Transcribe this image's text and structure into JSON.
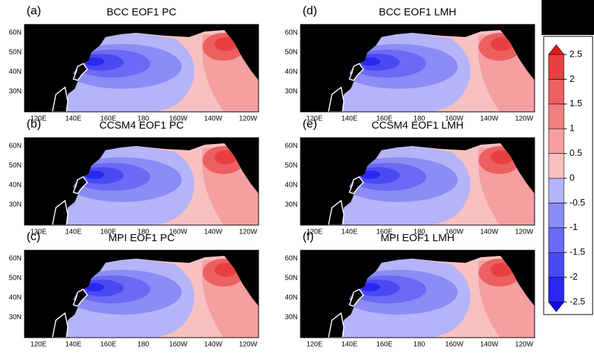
{
  "panels": [
    {
      "label": "(a)",
      "title": "BCC  EOF1  PC",
      "lat_ticks": [
        "60N",
        "50N",
        "40N",
        "30N"
      ],
      "lon_ticks": [
        "120E",
        "140E",
        "160E",
        "180",
        "160W",
        "140W",
        "120W"
      ]
    },
    {
      "label": "(b)",
      "title": "CCSM4  EOF1  PC",
      "lat_ticks": [
        "60N",
        "50N",
        "40N",
        "30N"
      ],
      "lon_ticks": [
        "120E",
        "140E",
        "160E",
        "180",
        "160W",
        "140W",
        "120W"
      ]
    },
    {
      "label": "(c)",
      "title": "MPI  EOF1  PC",
      "lat_ticks": [
        "60N",
        "50N",
        "40N",
        "30N"
      ],
      "lon_ticks": [
        "120E",
        "140E",
        "160E",
        "180",
        "160W",
        "140W",
        "120W"
      ]
    },
    {
      "label": "(d)",
      "title": "BCC  EOF1  LMH",
      "lat_ticks": [
        "60N",
        "50N",
        "40N",
        "30N"
      ],
      "lon_ticks": [
        "120E",
        "140E",
        "160E",
        "180",
        "160W",
        "140W",
        "120W"
      ]
    },
    {
      "label": "(e)",
      "title": "CCSM4  EOF1  LMH",
      "lat_ticks": [
        "60N",
        "50N",
        "40N",
        "30N"
      ],
      "lon_ticks": [
        "120E",
        "140E",
        "160E",
        "180",
        "160W",
        "140W",
        "120W"
      ]
    },
    {
      "label": "(f)",
      "title": "MPI  EOF1  LMH",
      "lat_ticks": [
        "60N",
        "50N",
        "40N",
        "30N"
      ],
      "lon_ticks": [
        "120E",
        "140E",
        "160E",
        "180",
        "160W",
        "140W",
        "120W"
      ]
    }
  ],
  "colorbar": {
    "levels": [
      -2.5,
      -2,
      -1.5,
      -1,
      -0.5,
      0,
      0.5,
      1,
      1.5,
      2,
      2.5
    ],
    "colors": [
      "#0a0aef",
      "#2828f2",
      "#4a4af3",
      "#6a6af4",
      "#8c8cf6",
      "#b4b4f8",
      "#f8c0c0",
      "#f4a0a0",
      "#f08080",
      "#ec6060",
      "#e84040",
      "#e01818"
    ]
  }
}
